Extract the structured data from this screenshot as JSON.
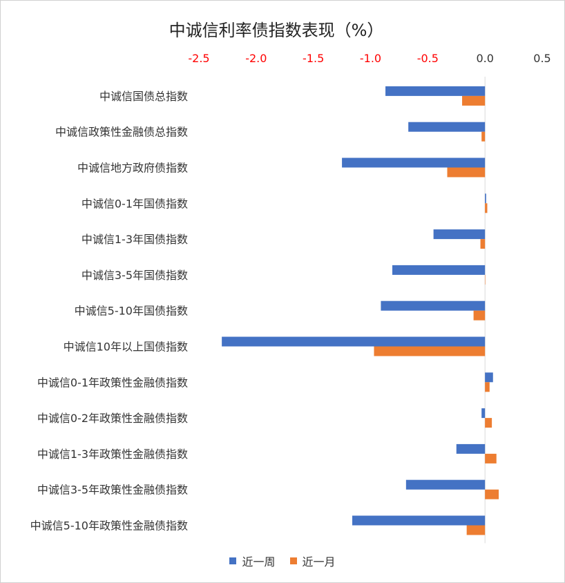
{
  "chart_data": {
    "type": "bar",
    "orientation": "horizontal",
    "title": "中诚信利率债指数表现（%）",
    "xlim": [
      -2.5,
      0.5
    ],
    "x_ticks": [
      -2.5,
      -2.0,
      -1.5,
      -1.0,
      -0.5,
      0.0,
      0.5
    ],
    "x_tick_labels": [
      "-2.5",
      "-2.0",
      "-1.5",
      "-1.0",
      "-0.5",
      "0.0",
      "0.5"
    ],
    "x_tick_negative_color": "#ff0000",
    "categories": [
      "中诚信国债总指数",
      "中诚信政策性金融债总指数",
      "中诚信地方政府债指数",
      "中诚信0-1年国债指数",
      "中诚信1-3年国债指数",
      "中诚信3-5年国债指数",
      "中诚信5-10年国债指数",
      "中诚信10年以上国债指数",
      "中诚信0-1年政策性金融债指数",
      "中诚信0-2年政策性金融债指数",
      "中诚信1-3年政策性金融债指数",
      "中诚信3-5年政策性金融债指数",
      "中诚信5-10年政策性金融债指数"
    ],
    "series": [
      {
        "name": "近一周",
        "color": "#4472c4",
        "values": [
          -0.87,
          -0.67,
          -1.25,
          0.01,
          -0.45,
          -0.81,
          -0.91,
          -2.3,
          0.07,
          -0.03,
          -0.25,
          -0.69,
          -1.16
        ]
      },
      {
        "name": "近一月",
        "color": "#ed7d31",
        "values": [
          -0.2,
          -0.03,
          -0.33,
          0.02,
          -0.04,
          0.0,
          -0.1,
          -0.97,
          0.04,
          0.06,
          0.1,
          0.12,
          -0.16
        ]
      }
    ],
    "grid": false,
    "legend_position": "bottom"
  }
}
